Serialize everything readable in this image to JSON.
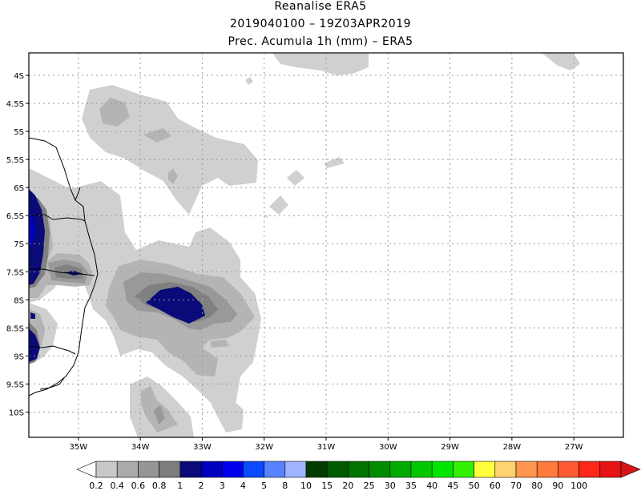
{
  "header": {
    "line1": "Reanalise ERA5",
    "line2": "2019040100 – 19Z03APR2019",
    "line3": "Prec. Acumula 1h (mm) – ERA5"
  },
  "map": {
    "lon_range": [
      -35.8,
      -26.2
    ],
    "lat_range": [
      -10.45,
      -3.6
    ],
    "lon_ticks": [
      {
        "value": -35,
        "label": "35W"
      },
      {
        "value": -34,
        "label": "34W"
      },
      {
        "value": -33,
        "label": "33W"
      },
      {
        "value": -32,
        "label": "32W"
      },
      {
        "value": -31,
        "label": "31W"
      },
      {
        "value": -30,
        "label": "30W"
      },
      {
        "value": -29,
        "label": "29W"
      },
      {
        "value": -28,
        "label": "28W"
      },
      {
        "value": -27,
        "label": "27W"
      }
    ],
    "lat_ticks": [
      {
        "value": -4,
        "label": "4S"
      },
      {
        "value": -4.5,
        "label": "4.5S"
      },
      {
        "value": -5,
        "label": "5S"
      },
      {
        "value": -5.5,
        "label": "5.5S"
      },
      {
        "value": -6,
        "label": "6S"
      },
      {
        "value": -6.5,
        "label": "6.5S"
      },
      {
        "value": -7,
        "label": "7S"
      },
      {
        "value": -7.5,
        "label": "7.5S"
      },
      {
        "value": -8,
        "label": "8S"
      },
      {
        "value": -8.5,
        "label": "8.5S"
      },
      {
        "value": -9,
        "label": "9S"
      },
      {
        "value": -9.5,
        "label": "9.5S"
      },
      {
        "value": -10,
        "label": "10S"
      }
    ]
  },
  "colorbar": {
    "colors": [
      "#c8c8c8",
      "#aaaaaa",
      "#969696",
      "#7d7d7d",
      "#0a0a78",
      "#0000be",
      "#0000f0",
      "#0a4bff",
      "#5a82ff",
      "#a0b4ff",
      "#003c00",
      "#005a00",
      "#007300",
      "#008c00",
      "#00aa00",
      "#00c800",
      "#00e600",
      "#32f000",
      "#ffff3c",
      "#ffd270",
      "#ff9650",
      "#ff7a3c",
      "#ff5a32",
      "#ff2818",
      "#e61414",
      "#d61616"
    ],
    "labels": [
      "0.2",
      "0.4",
      "0.6",
      "0.8",
      "1",
      "2",
      "3",
      "4",
      "5",
      "8",
      "10",
      "15",
      "20",
      "25",
      "30",
      "35",
      "40",
      "45",
      "50",
      "60",
      "70",
      "80",
      "90",
      "100"
    ]
  }
}
